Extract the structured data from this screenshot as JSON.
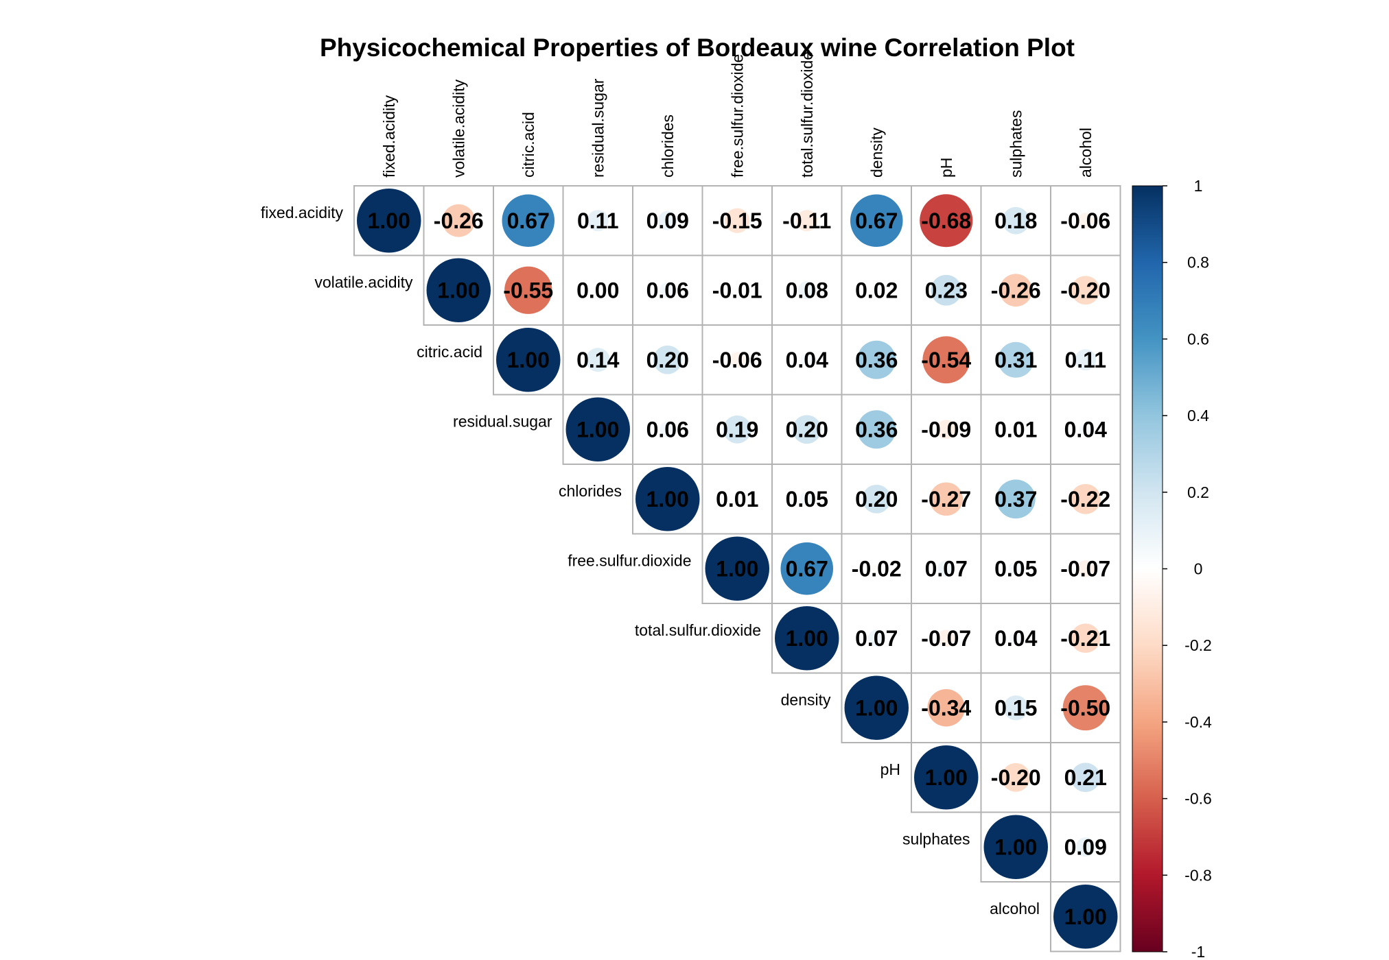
{
  "chart_data": {
    "type": "heatmap",
    "title": "Physicochemical Properties of Bordeaux wine Correlation Plot",
    "variables": [
      "fixed.acidity",
      "volatile.acidity",
      "citric.acid",
      "residual.sugar",
      "chlorides",
      "free.sulfur.dioxide",
      "total.sulfur.dioxide",
      "density",
      "pH",
      "sulphates",
      "alcohol"
    ],
    "matrix_type": "upper",
    "values": [
      [
        1.0,
        -0.26,
        0.67,
        0.11,
        0.09,
        -0.15,
        -0.11,
        0.67,
        -0.68,
        0.18,
        -0.06
      ],
      [
        null,
        1.0,
        -0.55,
        0.0,
        0.06,
        -0.01,
        0.08,
        0.02,
        0.23,
        -0.26,
        -0.2
      ],
      [
        null,
        null,
        1.0,
        0.14,
        0.2,
        -0.06,
        0.04,
        0.36,
        -0.54,
        0.31,
        0.11
      ],
      [
        null,
        null,
        null,
        1.0,
        0.06,
        0.19,
        0.2,
        0.36,
        -0.09,
        0.01,
        0.04
      ],
      [
        null,
        null,
        null,
        null,
        1.0,
        0.01,
        0.05,
        0.2,
        -0.27,
        0.37,
        -0.22
      ],
      [
        null,
        null,
        null,
        null,
        null,
        1.0,
        0.67,
        -0.02,
        0.07,
        0.05,
        -0.07
      ],
      [
        null,
        null,
        null,
        null,
        null,
        null,
        1.0,
        0.07,
        -0.07,
        0.04,
        -0.21
      ],
      [
        null,
        null,
        null,
        null,
        null,
        null,
        null,
        1.0,
        -0.34,
        0.15,
        -0.5
      ],
      [
        null,
        null,
        null,
        null,
        null,
        null,
        null,
        null,
        1.0,
        -0.2,
        0.21
      ],
      [
        null,
        null,
        null,
        null,
        null,
        null,
        null,
        null,
        null,
        1.0,
        0.09
      ],
      [
        null,
        null,
        null,
        null,
        null,
        null,
        null,
        null,
        null,
        null,
        1.0
      ]
    ],
    "colorbar": {
      "range": [
        -1,
        1
      ],
      "ticks": [
        "1",
        "0.8",
        "0.6",
        "0.4",
        "0.2",
        "0",
        "-0.2",
        "-0.4",
        "-0.6",
        "-0.8",
        "-1"
      ],
      "tick_values": [
        1,
        0.8,
        0.6,
        0.4,
        0.2,
        0,
        -0.2,
        -0.4,
        -0.6,
        -0.8,
        -1
      ],
      "palette": [
        "#67001F",
        "#B2182B",
        "#D6604D",
        "#F4A582",
        "#FDDBC7",
        "#FFFFFF",
        "#D1E5F0",
        "#92C5DE",
        "#4393C3",
        "#2166AC",
        "#053061"
      ]
    },
    "number_format": "2 decimals",
    "glyph": "circle"
  }
}
